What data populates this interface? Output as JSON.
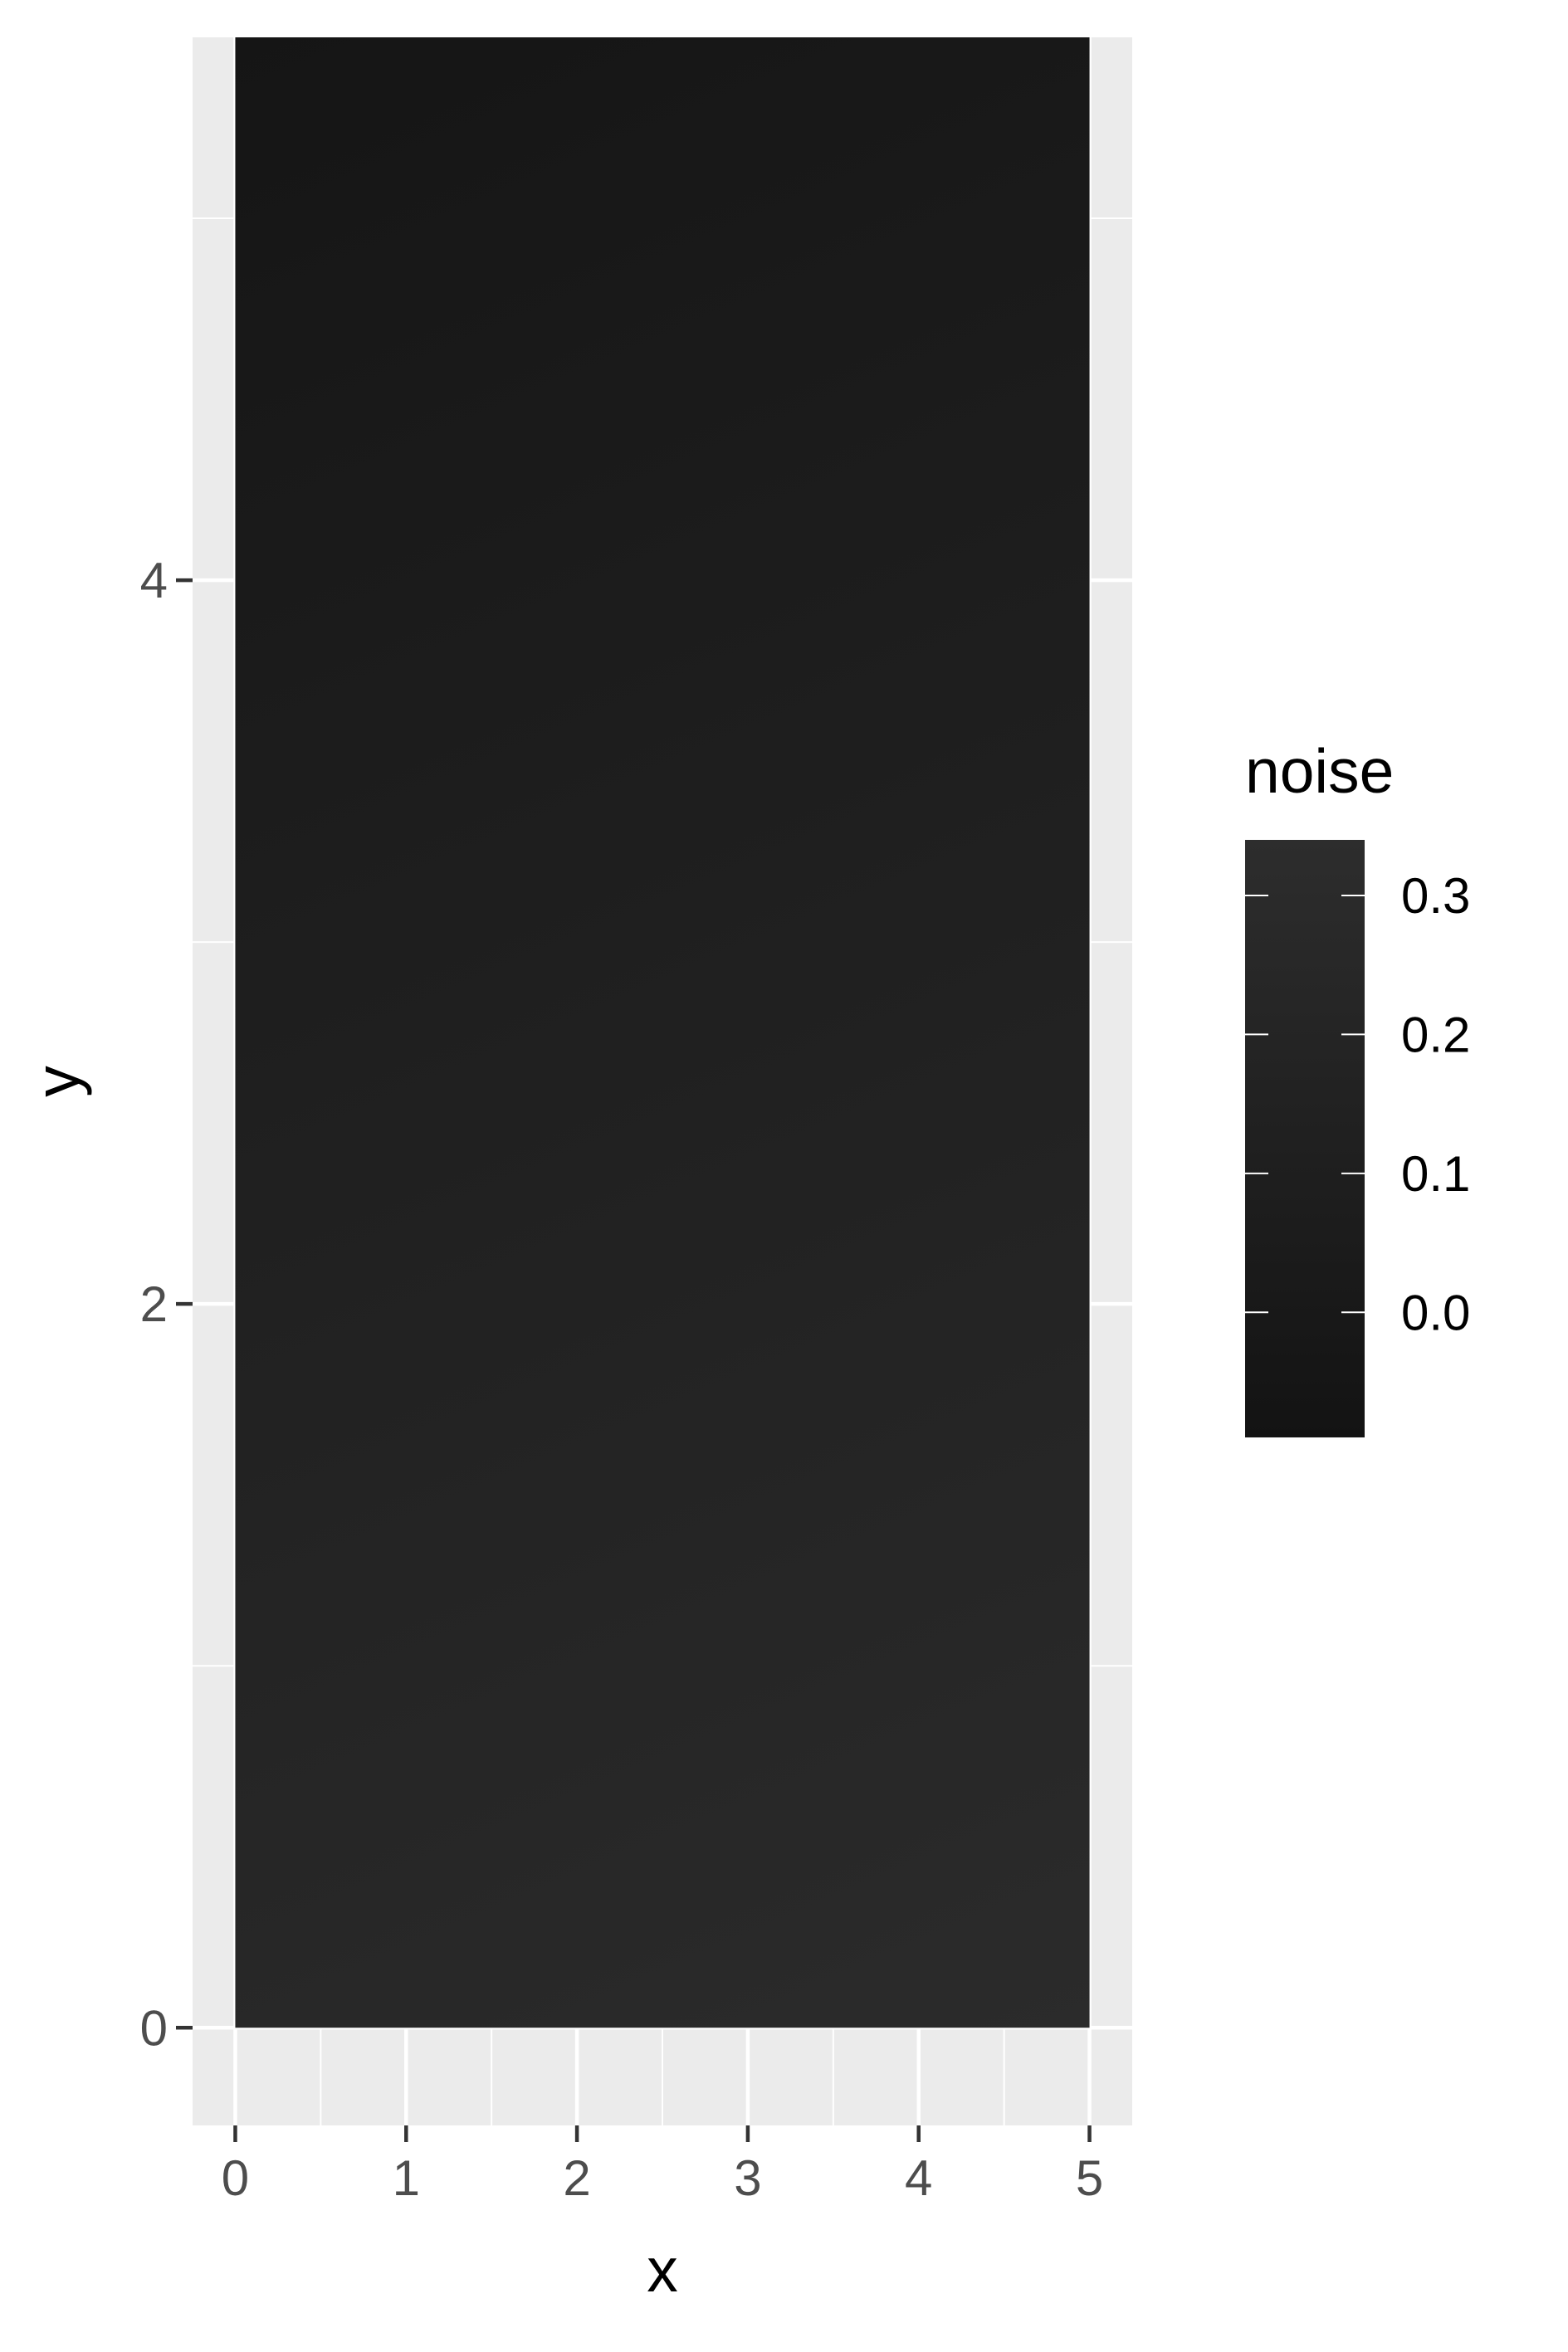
{
  "chart_data": {
    "type": "heatmap",
    "title": "",
    "xlabel": "x",
    "ylabel": "y",
    "xlim": [
      -0.25,
      5.25
    ],
    "ylim": [
      -0.27,
      5.5
    ],
    "x_ticks": [
      0,
      1,
      2,
      3,
      4,
      5
    ],
    "y_ticks": [
      0,
      2,
      4
    ],
    "x_minor": [
      0.5,
      1.5,
      2.5,
      3.5,
      4.5
    ],
    "y_minor": [
      1,
      3,
      5
    ],
    "grid": true,
    "tile_extent": {
      "x": [
        0,
        5
      ],
      "y": [
        0,
        5.5
      ]
    },
    "fill_corners": {
      "bottom_left": "#1f1f1f",
      "bottom_right": "#2b2b2b",
      "top_left": "#151515",
      "top_right": "#1c1c1c"
    },
    "legend": {
      "title": "noise",
      "position": "right",
      "range": [
        -0.09,
        0.34
      ],
      "breaks": [
        0.0,
        0.1,
        0.2,
        0.3
      ],
      "break_labels": [
        "0.0",
        "0.1",
        "0.2",
        "0.3"
      ],
      "low_color": "#131313",
      "high_color": "#2d2d2d"
    },
    "panel_background": "#ebebeb",
    "grid_color": "#ffffff"
  }
}
